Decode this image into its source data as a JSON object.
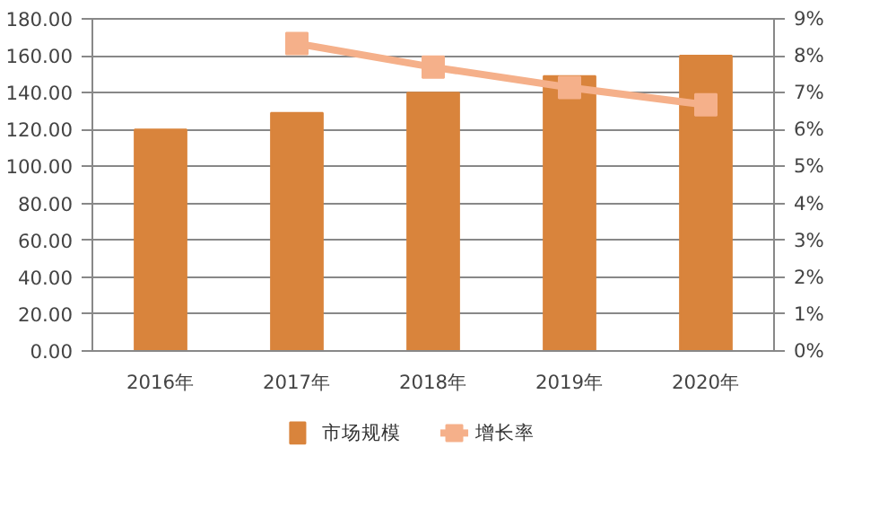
{
  "chart_data": {
    "type": "bar",
    "categories": [
      "2016年",
      "2017年",
      "2018年",
      "2019年",
      "2020年"
    ],
    "series": [
      {
        "name": "市场规模",
        "color": "#d9843c",
        "values": [
          120,
          129,
          140,
          149,
          160
        ]
      },
      {
        "name": "增长率",
        "type": "line",
        "axis": "y2",
        "color": "#f5b08a",
        "marker": "square",
        "values": [
          null,
          8.33,
          7.69,
          7.14,
          6.67
        ]
      }
    ],
    "ylim": [
      0,
      180
    ],
    "yticks": [
      {
        "value": 0,
        "label": "0.00"
      },
      {
        "value": 20,
        "label": "20.00"
      },
      {
        "value": 40,
        "label": "40.00"
      },
      {
        "value": 60,
        "label": "60.00"
      },
      {
        "value": 80,
        "label": "80.00"
      },
      {
        "value": 100,
        "label": "100.00"
      },
      {
        "value": 120,
        "label": "120.00"
      },
      {
        "value": 140,
        "label": "140.00"
      },
      {
        "value": 160,
        "label": "160.00"
      },
      {
        "value": 180,
        "label": "180.00"
      }
    ],
    "y2lim": [
      0,
      9
    ],
    "y2ticks": [
      {
        "value": 0,
        "label": "0%"
      },
      {
        "value": 1,
        "label": "1%"
      },
      {
        "value": 2,
        "label": "2%"
      },
      {
        "value": 3,
        "label": "3%"
      },
      {
        "value": 4,
        "label": "4%"
      },
      {
        "value": 5,
        "label": "5%"
      },
      {
        "value": 6,
        "label": "6%"
      },
      {
        "value": 7,
        "label": "7%"
      },
      {
        "value": 8,
        "label": "8%"
      },
      {
        "value": 9,
        "label": "9%"
      }
    ],
    "grid": "y",
    "legend": "bottom"
  }
}
